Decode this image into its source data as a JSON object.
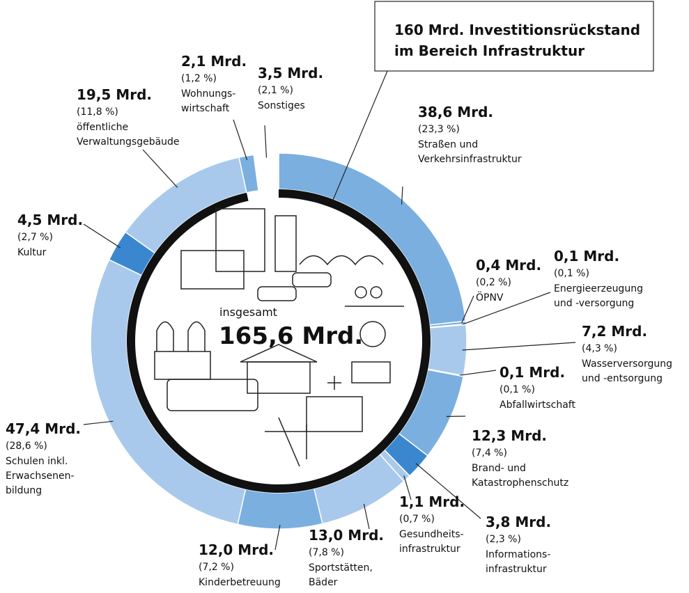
{
  "chart_data": {
    "type": "donut",
    "center_caption": "insgesamt",
    "center_total": "165,6 Mrd.",
    "annotation": {
      "value": 160,
      "lines": [
        "160 Mrd. Investitionsrückstand",
        "im Bereich Infrastruktur"
      ]
    },
    "categories": [
      [
        "Straßen und",
        "Verkehrsinfrastruktur"
      ],
      [
        "ÖPNV"
      ],
      [
        "Energieerzeugung",
        "und -versorgung"
      ],
      [
        "Wasserversorgung",
        "und -entsorgung"
      ],
      [
        "Abfallwirtschaft"
      ],
      [
        "Brand- und",
        "Katastrophenschutz"
      ],
      [
        "Informations-",
        "infrastruktur"
      ],
      [
        "Gesundheits-",
        "infrastruktur"
      ],
      [
        "Sportstätten,",
        "Bäder"
      ],
      [
        "Kinderbetreuung"
      ],
      [
        "Schulen inkl.",
        "Erwachsenen-",
        "bildung"
      ],
      [
        "Kultur"
      ],
      [
        "öffentliche",
        "Verwaltungsgebäude"
      ],
      [
        "Wohnungs-",
        "wirtschaft"
      ],
      [
        "Sonstiges"
      ]
    ],
    "values": [
      38.6,
      0.4,
      0.1,
      7.2,
      0.1,
      12.3,
      3.8,
      1.1,
      13.0,
      12.0,
      47.4,
      4.5,
      19.5,
      2.1,
      3.5
    ],
    "value_labels": [
      "38,6 Mrd.",
      "0,4 Mrd.",
      "0,1 Mrd.",
      "7,2 Mrd.",
      "0,1 Mrd.",
      "12,3 Mrd.",
      "3,8 Mrd.",
      "1,1 Mrd.",
      "13,0 Mrd.",
      "12,0 Mrd.",
      "47,4 Mrd.",
      "4,5 Mrd.",
      "19,5 Mrd.",
      "2,1 Mrd.",
      "3,5 Mrd."
    ],
    "percent_labels": [
      "(23,3 %)",
      "(0,2 %)",
      "(0,1 %)",
      "(4,3 %)",
      "(0,1 %)",
      "(7,4 %)",
      "(2,3 %)",
      "(0,7 %)",
      "(7,8 %)",
      "(7,2 %)",
      "(28,6 %)",
      "(2,7 %)",
      "(11,8 %)",
      "(1,2 %)",
      "(2,1 %)"
    ],
    "colors": [
      "#7aafe0",
      "#7aafe0",
      "#a8c9eb",
      "#a8c9eb",
      "#a8c9eb",
      "#7aafe0",
      "#3a87cf",
      "#a8c9eb",
      "#a8c9eb",
      "#7aafe0",
      "#a8c9eb",
      "#3a87cf",
      "#a8c9eb",
      "#7aafe0",
      "#ffffff"
    ]
  }
}
